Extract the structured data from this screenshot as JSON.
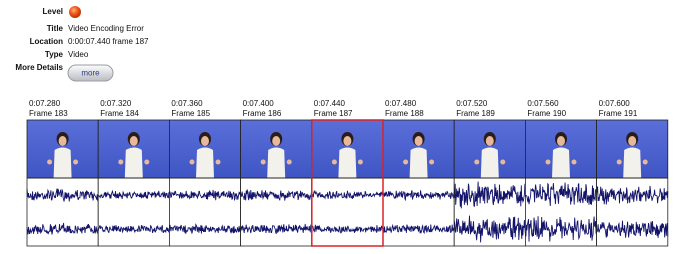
{
  "details": {
    "fields": [
      {
        "label": "Level"
      },
      {
        "label": "Title",
        "value": "Video Encoding Error"
      },
      {
        "label": "Location",
        "value": "0:00:07.440 frame 187"
      },
      {
        "label": "Type",
        "value": "Video"
      },
      {
        "label": "More Details"
      }
    ],
    "button": "more"
  },
  "frames": [
    {
      "time": "0:07.280",
      "frame": "Frame 183"
    },
    {
      "time": "0:07.320",
      "frame": "Frame 184"
    },
    {
      "time": "0:07.360",
      "frame": "Frame 185"
    },
    {
      "time": "0:07.400",
      "frame": "Frame 186"
    },
    {
      "time": "0:07.440",
      "frame": "Frame 187",
      "highlighted": true
    },
    {
      "time": "0:07.480",
      "frame": "Frame 188"
    },
    {
      "time": "0:07.520",
      "frame": "Frame 189"
    },
    {
      "time": "0:07.560",
      "frame": "Frame 190"
    },
    {
      "time": "0:07.600",
      "frame": "Frame 191"
    }
  ]
}
